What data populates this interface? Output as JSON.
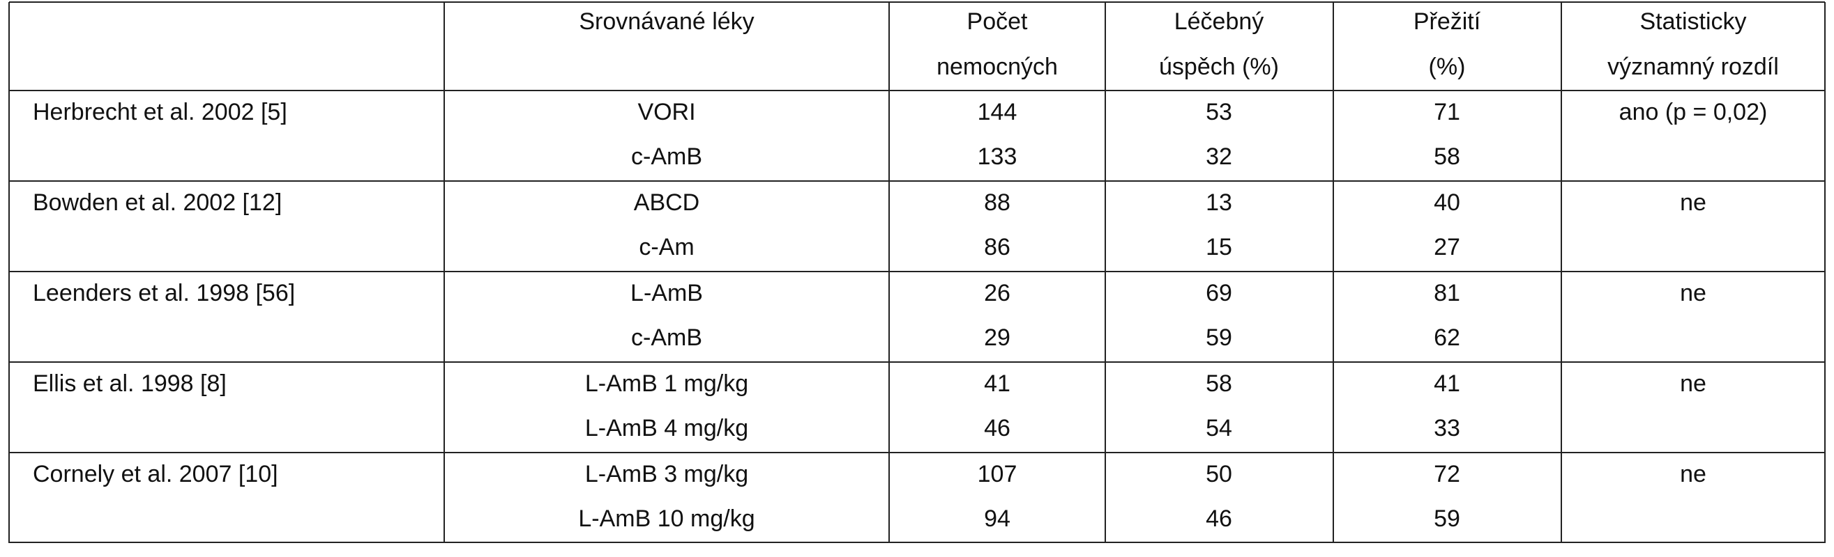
{
  "table": {
    "header": [
      [
        "Srovnávané léky"
      ],
      [
        "Počet",
        "nemocných"
      ],
      [
        "Léčebný",
        "úspěch (%)"
      ],
      [
        "Přežití",
        "(%)"
      ],
      [
        "Statisticky",
        "významný rozdíl"
      ]
    ],
    "groups": [
      {
        "study": "Herbrecht et al. 2002 [5]",
        "significant": "ano (p = 0,02)",
        "rows": [
          [
            "VORI",
            144,
            53,
            71
          ],
          [
            "c-AmB",
            133,
            32,
            58
          ]
        ]
      },
      {
        "study": "Bowden et al. 2002 [12]",
        "significant": "ne",
        "rows": [
          [
            "ABCD",
            88,
            13,
            40
          ],
          [
            "c-Am",
            86,
            15,
            27
          ]
        ]
      },
      {
        "study": "Leenders et al. 1998 [56]",
        "significant": "ne",
        "rows": [
          [
            "L-AmB",
            26,
            69,
            81
          ],
          [
            "c-AmB",
            29,
            59,
            62
          ]
        ]
      },
      {
        "study": "Ellis et al. 1998 [8]",
        "significant": "ne",
        "rows": [
          [
            "L-AmB 1 mg/kg",
            41,
            58,
            41
          ],
          [
            "L-AmB 4 mg/kg",
            46,
            54,
            33
          ]
        ]
      },
      {
        "study": "Cornely et al. 2007 [10]",
        "significant": "ne",
        "rows": [
          [
            "L-AmB 3 mg/kg",
            107,
            50,
            72
          ],
          [
            "L-AmB 10 mg/kg",
            94,
            46,
            59
          ]
        ]
      }
    ]
  }
}
